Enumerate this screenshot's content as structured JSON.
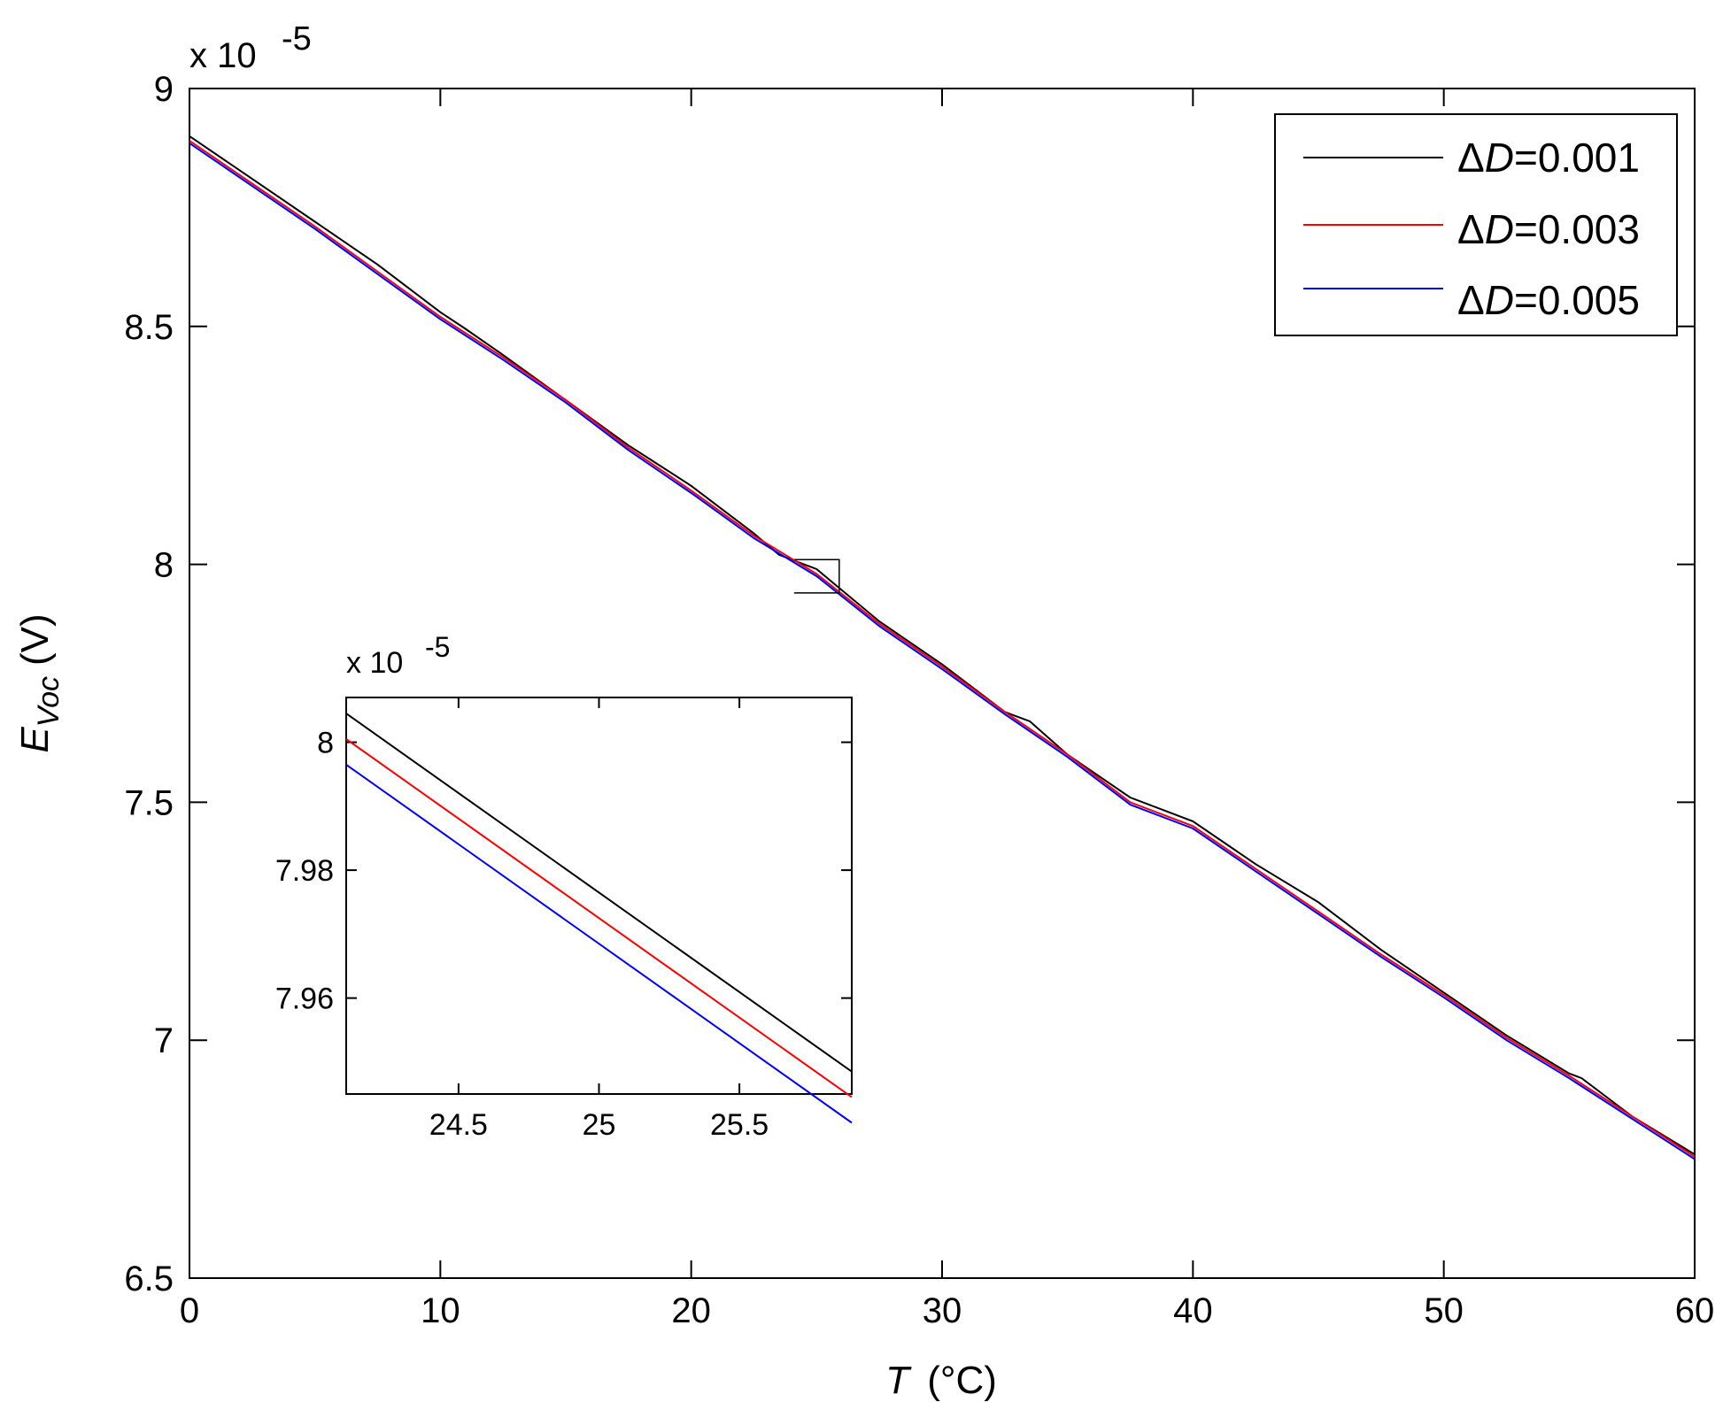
{
  "chart_data": [
    {
      "type": "line",
      "name": "main",
      "xlabel_italic": "T",
      "xlabel_unit": "(°C)",
      "ylabel_symbol": "E",
      "ylabel_subscript": "Voc",
      "ylabel_unit": "(V)",
      "y_multiplier": "x 10",
      "y_exponent": "-5",
      "xlim": [
        0,
        60
      ],
      "ylim": [
        6.5,
        9
      ],
      "x_ticks": [
        0,
        10,
        20,
        30,
        40,
        50,
        60
      ],
      "y_ticks": [
        6.5,
        7,
        7.5,
        8,
        8.5,
        9
      ],
      "y_tick_labels": [
        "6.5",
        "7",
        "7.5",
        "8",
        "8.5",
        "9"
      ],
      "legend_position": "top-right",
      "grid": false,
      "series": [
        {
          "delta": "Δ",
          "var": "D",
          "value": "=0.001",
          "color": "#000000",
          "x": [
            0,
            2.5,
            5,
            7.5,
            10,
            11,
            12.5,
            15,
            17.5,
            20,
            22.5,
            23.5,
            25,
            27.5,
            30,
            32.5,
            33.5,
            35,
            37.5,
            40,
            42.5,
            45,
            47.5,
            50,
            52.5,
            55,
            55.5,
            57.5,
            60
          ],
          "y": [
            8.9,
            8.81,
            8.72,
            8.63,
            8.53,
            8.495,
            8.44,
            8.345,
            8.25,
            8.165,
            8.065,
            8.02,
            7.99,
            7.88,
            7.79,
            7.69,
            7.67,
            7.6,
            7.51,
            7.46,
            7.37,
            7.29,
            7.19,
            7.1,
            7.01,
            6.93,
            6.92,
            6.84,
            6.76
          ]
        },
        {
          "delta": "Δ",
          "var": "D",
          "value": "=0.003",
          "color": "#ff0000",
          "x": [
            0,
            2.5,
            5,
            7.5,
            10,
            12.5,
            15,
            17.5,
            20,
            22.5,
            25,
            27.5,
            30,
            32.5,
            35,
            37.5,
            40,
            42.5,
            45,
            47.5,
            50,
            52.5,
            55,
            57.5,
            60
          ],
          "y": [
            8.89,
            8.8,
            8.71,
            8.615,
            8.52,
            8.435,
            8.345,
            8.245,
            8.155,
            8.06,
            7.98,
            7.875,
            7.785,
            7.69,
            7.6,
            7.5,
            7.45,
            7.36,
            7.27,
            7.18,
            7.095,
            7.005,
            6.925,
            6.84,
            6.755
          ]
        },
        {
          "delta": "Δ",
          "var": "D",
          "value": "=0.005",
          "color": "#0000ff",
          "x": [
            0,
            2.5,
            5,
            7.5,
            10,
            12.5,
            15,
            17.5,
            20,
            22.5,
            25,
            27.5,
            30,
            32.5,
            35,
            37.5,
            40,
            42.5,
            45,
            47.5,
            50,
            52.5,
            55,
            57.5,
            60
          ],
          "y": [
            8.885,
            8.795,
            8.705,
            8.61,
            8.515,
            8.43,
            8.34,
            8.24,
            8.15,
            8.055,
            7.975,
            7.87,
            7.78,
            7.685,
            7.595,
            7.495,
            7.445,
            7.355,
            7.265,
            7.175,
            7.09,
            7.0,
            6.92,
            6.835,
            6.75
          ]
        }
      ],
      "zoom_box": {
        "x": [
          24.1,
          25.9
        ],
        "y": [
          7.94,
          8.01
        ]
      }
    },
    {
      "type": "line",
      "name": "inset",
      "y_multiplier": "x 10",
      "y_exponent": "-5",
      "xlim": [
        24.1,
        25.9
      ],
      "ylim": [
        7.945,
        8.007
      ],
      "x_ticks": [
        24.5,
        25,
        25.5
      ],
      "y_ticks": [
        7.96,
        7.98,
        8
      ],
      "y_tick_labels": [
        "7.96",
        "7.98",
        "8"
      ],
      "series": [
        {
          "color": "#000000",
          "x": [
            24.1,
            25.9
          ],
          "y": [
            8.0045,
            7.9485
          ]
        },
        {
          "color": "#ff0000",
          "x": [
            24.1,
            25.9
          ],
          "y": [
            8.0005,
            7.9445
          ]
        },
        {
          "color": "#0000ff",
          "x": [
            24.1,
            25.9
          ],
          "y": [
            7.9965,
            7.9405
          ]
        }
      ]
    }
  ]
}
